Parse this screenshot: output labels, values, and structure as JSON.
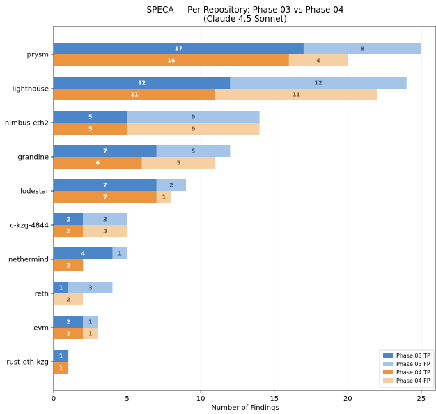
{
  "chart_data": {
    "type": "bar",
    "orientation": "horizontal",
    "stacked": true,
    "title": "SPECA — Per-Repository: Phase 03 vs Phase 04",
    "subtitle": "(Claude 4.5 Sonnet)",
    "xlabel": "Number of Findings",
    "ylabel": "",
    "xlim": [
      0,
      26
    ],
    "xticks": [
      0,
      5,
      10,
      15,
      20,
      25
    ],
    "grid": "vertical",
    "legend_position": "bottom-right",
    "categories": [
      "prysm",
      "lighthouse",
      "nimbus-eth2",
      "grandine",
      "lodestar",
      "c-kzg-4844",
      "nethermind",
      "reth",
      "evm",
      "rust-eth-kzg"
    ],
    "series": [
      {
        "name": "Phase 03 TP",
        "color": "#4a86c8",
        "group": "Phase 03",
        "values": [
          17,
          12,
          5,
          7,
          7,
          2,
          4,
          1,
          2,
          1
        ]
      },
      {
        "name": "Phase 03 FP",
        "color": "#a4c4e8",
        "group": "Phase 03",
        "values": [
          8,
          12,
          9,
          5,
          2,
          3,
          1,
          3,
          1,
          0
        ]
      },
      {
        "name": "Phase 04 TP",
        "color": "#ed9440",
        "group": "Phase 04",
        "values": [
          16,
          11,
          5,
          6,
          7,
          2,
          2,
          0,
          2,
          1
        ]
      },
      {
        "name": "Phase 04 FP",
        "color": "#f6cfa2",
        "group": "Phase 04",
        "values": [
          4,
          11,
          9,
          5,
          1,
          3,
          0,
          2,
          1,
          0
        ]
      }
    ]
  },
  "colors": {
    "tp_label": "#ffffff",
    "p03_fp_label": "#334f7a",
    "p04_fp_label": "#7a5530"
  }
}
